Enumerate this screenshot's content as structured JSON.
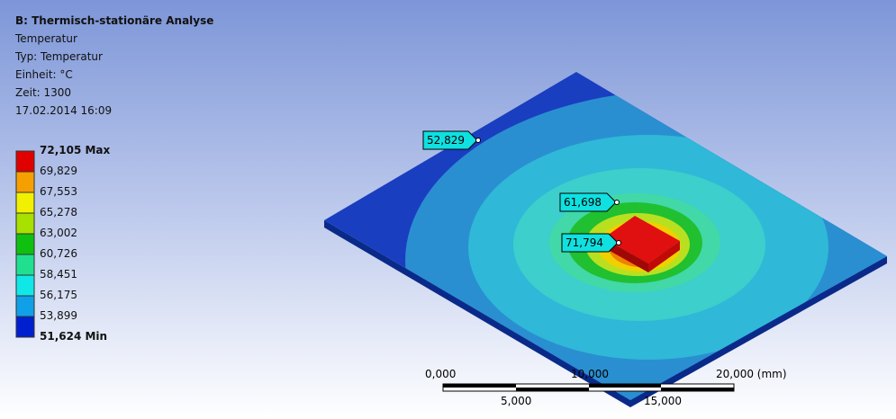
{
  "header": {
    "title": "B: Thermisch-stationäre Analyse",
    "lines": [
      "Temperatur",
      "Typ: Temperatur",
      "Einheit: °C",
      "Zeit: 1300",
      "17.02.2014 16:09"
    ]
  },
  "legend": {
    "labels": [
      "72,105 Max",
      "69,829",
      "67,553",
      "65,278",
      "63,002",
      "60,726",
      "58,451",
      "56,175",
      "53,899",
      "51,624 Min"
    ]
  },
  "probes": [
    "52,829",
    "61,698",
    "71,794"
  ],
  "scale_bar": {
    "top_labels": [
      "0,000",
      "10,000",
      "20,000 (mm)"
    ],
    "bottom_labels": [
      "5,000",
      "15,000"
    ]
  }
}
